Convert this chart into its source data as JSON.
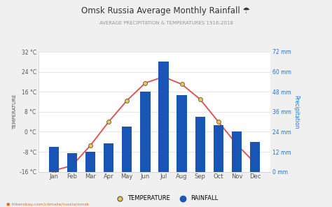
{
  "title": "Omsk Russia Average Monthly Rainfall ☂",
  "subtitle": "AVERAGE PRECIPITATION & TEMPERATURES 1916-2018",
  "months": [
    "Jan",
    "Feb",
    "Mar",
    "Apr",
    "May",
    "Jun",
    "Jul",
    "Aug",
    "Sep",
    "Oct",
    "Nov",
    "Dec"
  ],
  "rainfall_mm": [
    15,
    11,
    12,
    17,
    27,
    48,
    66,
    46,
    33,
    28,
    24,
    18
  ],
  "temperature_c": [
    -15.5,
    -13.5,
    -5.5,
    4.0,
    12.5,
    19.5,
    22.0,
    19.0,
    13.0,
    4.0,
    -5.0,
    -12.5
  ],
  "temp_ylim": [
    -16,
    32
  ],
  "temp_yticks": [
    -16,
    -8,
    0,
    8,
    16,
    24,
    32
  ],
  "rain_ylim": [
    0,
    72
  ],
  "rain_yticks": [
    0,
    12,
    24,
    36,
    48,
    60,
    72
  ],
  "bar_color": "#1955b5",
  "line_color": "#e05555",
  "marker_face": "#f0c840",
  "marker_edge": "#666666",
  "bg_color": "#f0f0f0",
  "plot_bg": "#ffffff",
  "left_label_color": "#555555",
  "right_label_color": "#2277cc",
  "grid_color": "#dddddd",
  "ylabel_left": "TEMPERATURE",
  "ylabel_right": "Precipitation",
  "watermark": "hikersbay.com/climate/russia/omsk",
  "legend_temp": "TEMPERATURE",
  "legend_rain": "RAINFALL"
}
